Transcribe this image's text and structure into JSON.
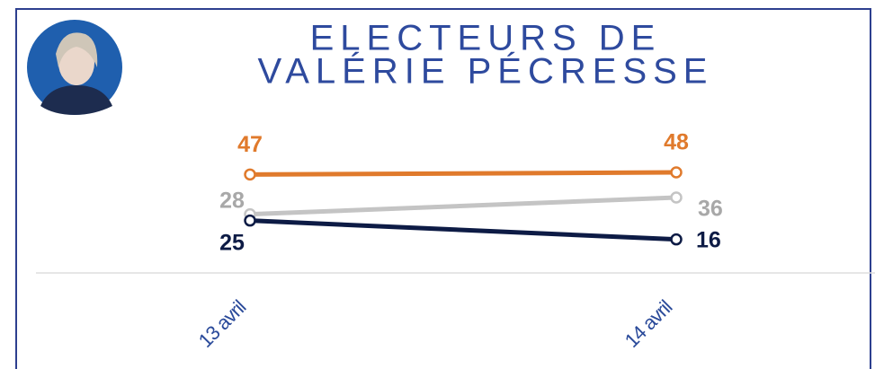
{
  "chart_data": {
    "type": "line",
    "title": [
      "ELECTEURS DE",
      "VALÉRIE PÉCRESSE"
    ],
    "categories": [
      "13 avril",
      "14 avril"
    ],
    "series": [
      {
        "color": "#e07a2c",
        "label_color": "#e07a2c",
        "values": [
          47,
          48
        ]
      },
      {
        "color": "#c4c4c4",
        "label_color": "#a8a8a8",
        "values": [
          28,
          36
        ]
      },
      {
        "color": "#0d1b45",
        "label_color": "#0d1b45",
        "values": [
          25,
          16
        ]
      }
    ],
    "ylim": [
      0,
      60
    ]
  }
}
